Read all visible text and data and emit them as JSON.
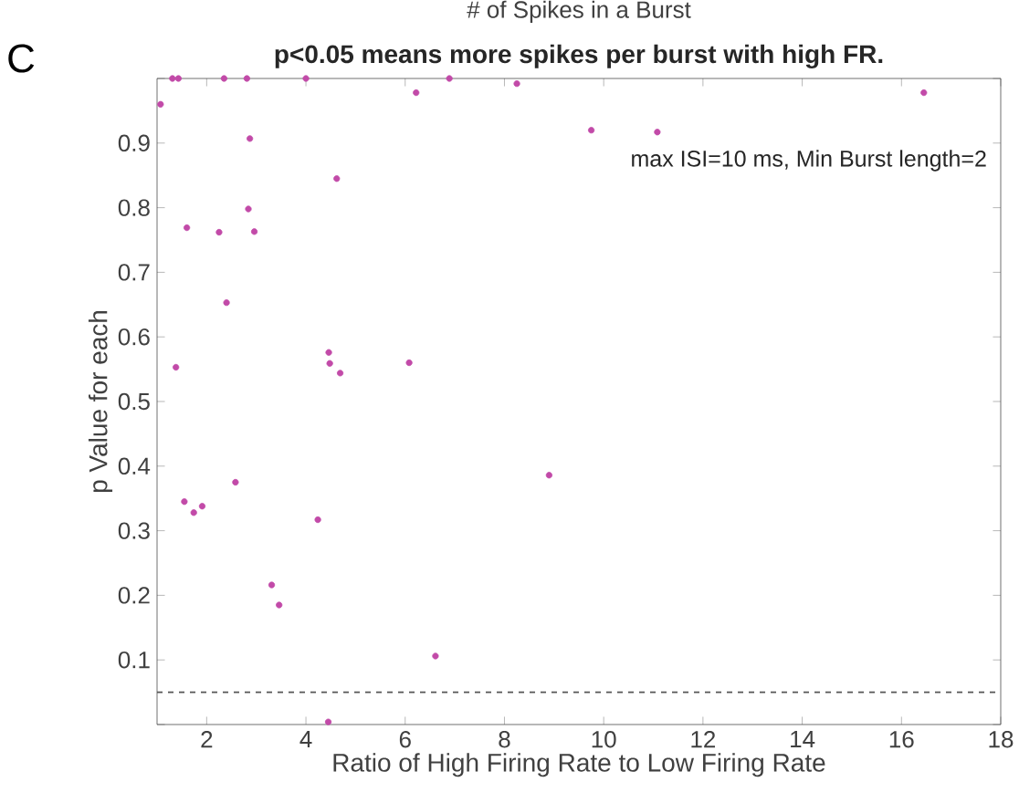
{
  "chart_data": {
    "type": "scatter",
    "title": "# of Spikes in a Burst",
    "subtitle": "p<0.05 means more spikes per burst with high FR.",
    "xlabel": "Ratio of High Firing Rate to Low Firing Rate",
    "ylabel": "p Value for each",
    "annotations": [
      "C",
      "max ISI=10 ms, Min Burst length=2"
    ],
    "x": [
      1.07,
      1.31,
      1.43,
      2.35,
      2.81,
      4.0,
      6.22,
      6.89,
      8.25,
      16.45,
      9.75,
      11.08,
      2.87,
      4.62,
      2.84,
      1.6,
      2.25,
      2.96,
      2.4,
      1.38,
      4.46,
      4.48,
      4.69,
      6.08,
      8.9,
      1.55,
      1.74,
      1.91,
      2.58,
      4.24,
      3.31,
      3.46,
      6.61,
      4.45
    ],
    "series": [
      {
        "color": "#c24aa8",
        "values": [
          0.96,
          1.0,
          1.0,
          1.0,
          1.0,
          1.0,
          0.978,
          1.0,
          0.992,
          0.978,
          0.92,
          0.917,
          0.907,
          0.845,
          0.798,
          0.769,
          0.762,
          0.763,
          0.653,
          0.553,
          0.576,
          0.559,
          0.544,
          0.56,
          0.386,
          0.345,
          0.328,
          0.338,
          0.375,
          0.317,
          0.216,
          0.185,
          0.106,
          0.004
        ]
      }
    ],
    "xlim": [
      1,
      18
    ],
    "ylim": [
      0,
      1
    ],
    "xticks": [
      2,
      4,
      6,
      8,
      10,
      12,
      14,
      16,
      18
    ],
    "yticks": [
      {
        "value": 0,
        "label": null
      },
      0.1,
      0.2,
      0.3,
      0.4,
      0.5,
      0.6,
      0.7,
      0.8,
      0.9,
      {
        "value": 1,
        "label": null
      }
    ],
    "ref_lines": [
      {
        "axis": "y",
        "value": 0.05,
        "color": "#555555",
        "line_style": "dashed"
      }
    ],
    "grid": false
  }
}
